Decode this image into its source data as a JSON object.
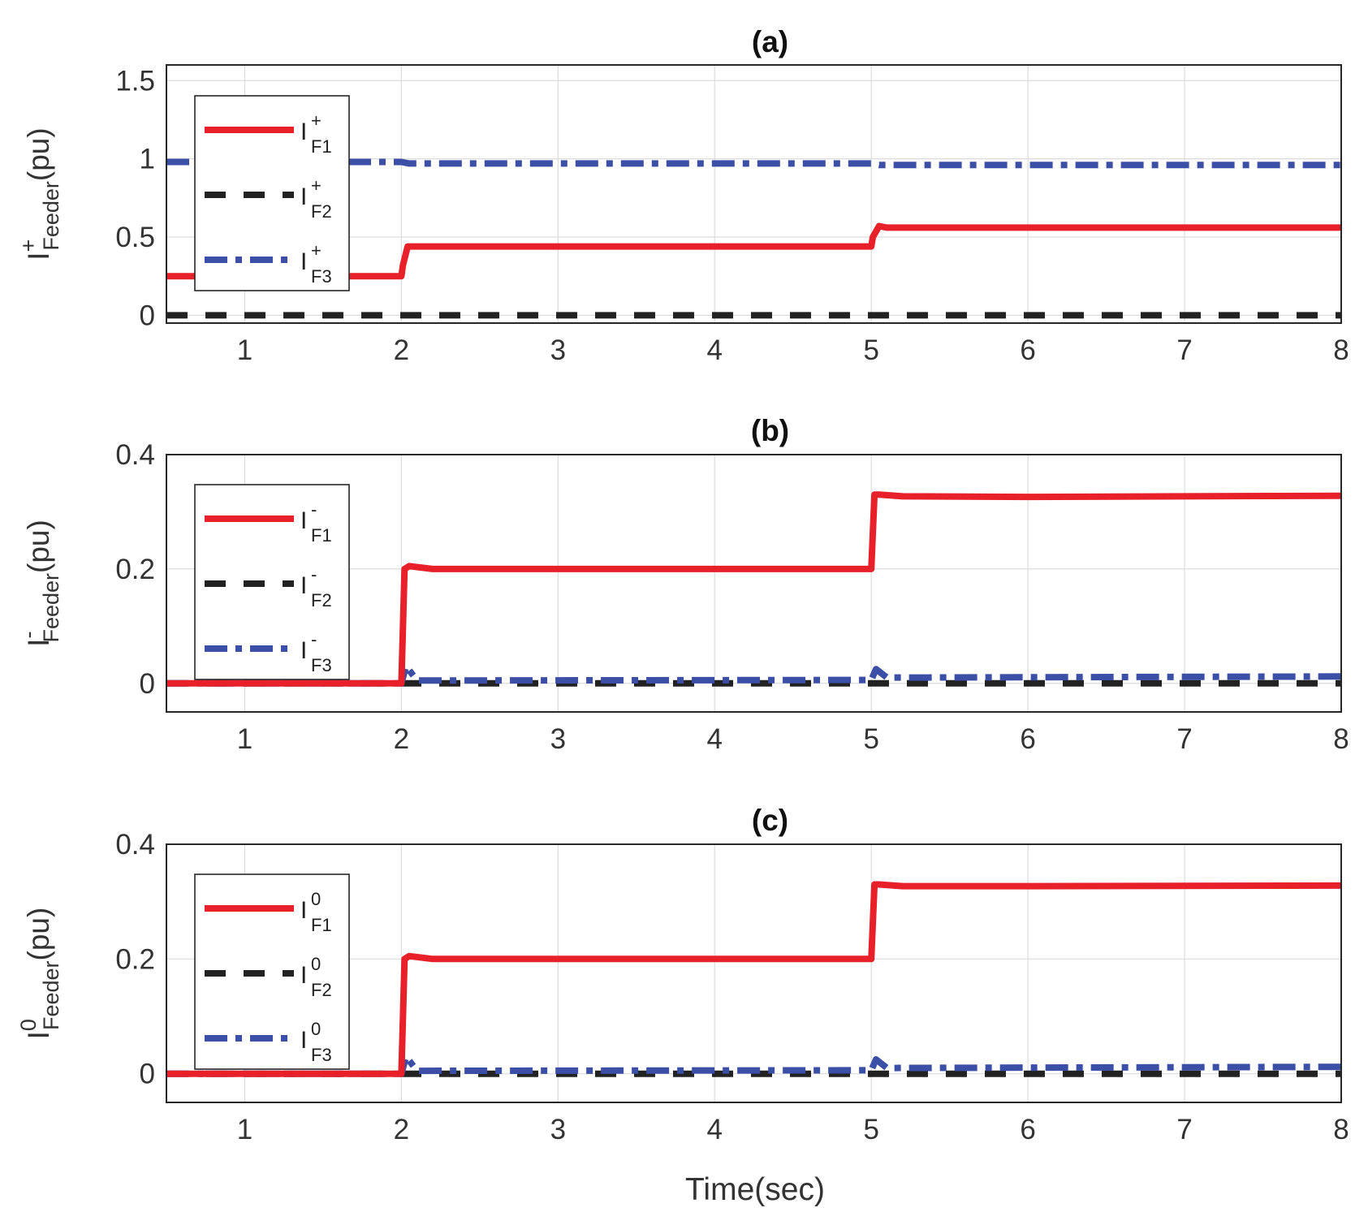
{
  "figure": {
    "xlabel": "Time(sec)"
  },
  "chart_data": [
    {
      "type": "line",
      "title": "(a)",
      "ylabel": {
        "base": "I",
        "sup": "+",
        "sub": "Feeder",
        "unit": "(pu)"
      },
      "xlim": [
        0.5,
        8
      ],
      "ylim": [
        -0.05,
        1.6
      ],
      "xticks": [
        1,
        2,
        3,
        4,
        5,
        6,
        7,
        8
      ],
      "yticks": [
        0,
        0.5,
        1,
        1.5
      ],
      "ytick_labels": [
        "0",
        "0.5",
        "1",
        "1.5"
      ],
      "grid": true,
      "legend_position": "upper-left",
      "series": [
        {
          "name": "I+F1",
          "label": {
            "base": "I",
            "sup": "+",
            "sub": "F1"
          },
          "color": "#e8202a",
          "style": "solid",
          "x": [
            0.5,
            2.0,
            2.01,
            2.04,
            2.1,
            5.0,
            5.01,
            5.05,
            5.1,
            8.0
          ],
          "y": [
            0.25,
            0.25,
            0.32,
            0.44,
            0.44,
            0.44,
            0.5,
            0.57,
            0.56,
            0.56
          ]
        },
        {
          "name": "I+F2",
          "label": {
            "base": "I",
            "sup": "+",
            "sub": "F2"
          },
          "color": "#222222",
          "style": "dashed",
          "x": [
            0.5,
            8.0
          ],
          "y": [
            0.0,
            0.0
          ]
        },
        {
          "name": "I+F3",
          "label": {
            "base": "I",
            "sup": "+",
            "sub": "F3"
          },
          "color": "#3b4fa6",
          "style": "dashdot",
          "x": [
            0.5,
            2.0,
            2.05,
            5.0,
            5.05,
            8.0
          ],
          "y": [
            0.98,
            0.98,
            0.97,
            0.97,
            0.96,
            0.96
          ]
        }
      ]
    },
    {
      "type": "line",
      "title": "(b)",
      "ylabel": {
        "base": "I",
        "sup": "-",
        "sub": "Feeder",
        "unit": "(pu)"
      },
      "xlim": [
        0.5,
        8
      ],
      "ylim": [
        -0.05,
        0.4
      ],
      "xticks": [
        1,
        2,
        3,
        4,
        5,
        6,
        7,
        8
      ],
      "yticks": [
        0,
        0.2,
        0.4
      ],
      "ytick_labels": [
        "0",
        "0.2",
        "0.4"
      ],
      "grid": true,
      "legend_position": "upper-left",
      "series": [
        {
          "name": "I-F1",
          "label": {
            "base": "I",
            "sup": "-",
            "sub": "F1"
          },
          "color": "#e8202a",
          "style": "solid",
          "x": [
            0.5,
            2.0,
            2.02,
            2.05,
            2.2,
            5.0,
            5.02,
            5.05,
            5.2,
            6.0,
            8.0
          ],
          "y": [
            0.0,
            0.0,
            0.2,
            0.205,
            0.2,
            0.2,
            0.33,
            0.33,
            0.327,
            0.326,
            0.328
          ]
        },
        {
          "name": "I-F2",
          "label": {
            "base": "I",
            "sup": "-",
            "sub": "F2"
          },
          "color": "#222222",
          "style": "dashed",
          "x": [
            0.5,
            8.0
          ],
          "y": [
            0.0,
            0.0
          ]
        },
        {
          "name": "I-F3",
          "label": {
            "base": "I",
            "sup": "-",
            "sub": "F3"
          },
          "color": "#3b4fa6",
          "style": "dashdot",
          "x": [
            0.5,
            2.0,
            2.03,
            2.1,
            5.0,
            5.03,
            5.1,
            8.0
          ],
          "y": [
            0.0,
            0.0,
            0.03,
            0.005,
            0.006,
            0.025,
            0.01,
            0.012
          ]
        }
      ]
    },
    {
      "type": "line",
      "title": "(c)",
      "ylabel": {
        "base": "I",
        "sup": "0",
        "sub": "Feeder",
        "unit": "(pu)"
      },
      "xlim": [
        0.5,
        8
      ],
      "ylim": [
        -0.05,
        0.4
      ],
      "xticks": [
        1,
        2,
        3,
        4,
        5,
        6,
        7,
        8
      ],
      "yticks": [
        0,
        0.2,
        0.4
      ],
      "ytick_labels": [
        "0",
        "0.2",
        "0.4"
      ],
      "grid": true,
      "legend_position": "upper-left",
      "series": [
        {
          "name": "I0F1",
          "label": {
            "base": "I",
            "sup": "0",
            "sub": "F1"
          },
          "color": "#e8202a",
          "style": "solid",
          "x": [
            0.5,
            2.0,
            2.02,
            2.05,
            2.2,
            5.0,
            5.02,
            5.05,
            5.2,
            6.0,
            8.0
          ],
          "y": [
            0.0,
            0.0,
            0.2,
            0.205,
            0.2,
            0.2,
            0.33,
            0.33,
            0.327,
            0.327,
            0.328
          ]
        },
        {
          "name": "I0F2",
          "label": {
            "base": "I",
            "sup": "0",
            "sub": "F2"
          },
          "color": "#222222",
          "style": "dashed",
          "x": [
            0.5,
            8.0
          ],
          "y": [
            0.0,
            0.0
          ]
        },
        {
          "name": "I0F3",
          "label": {
            "base": "I",
            "sup": "0",
            "sub": "F3"
          },
          "color": "#3b4fa6",
          "style": "dashdot",
          "x": [
            0.5,
            2.0,
            2.03,
            2.1,
            5.0,
            5.03,
            5.1,
            8.0
          ],
          "y": [
            0.0,
            0.0,
            0.03,
            0.005,
            0.006,
            0.025,
            0.01,
            0.012
          ]
        }
      ]
    }
  ]
}
